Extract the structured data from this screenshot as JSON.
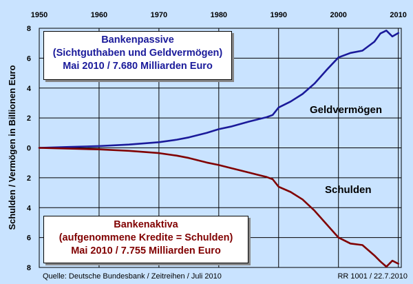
{
  "chart_data": {
    "type": "line",
    "ylabel": "Schulden / Vermögen in Billionen Euro",
    "x_ticks": [
      "1950",
      "1960",
      "1970",
      "1980",
      "1990",
      "2000",
      "2010"
    ],
    "y_ticks_upper": [
      "8",
      "6",
      "4",
      "2",
      "0"
    ],
    "y_ticks_lower": [
      "2",
      "4",
      "6",
      "8"
    ],
    "xlim": [
      1950,
      2010.5
    ],
    "ylim": [
      -8,
      8
    ],
    "grid": true,
    "series": [
      {
        "name": "Geldvermögen",
        "color": "#1a1a9a",
        "x": [
          1950,
          1955,
          1960,
          1965,
          1970,
          1973,
          1975,
          1978,
          1980,
          1982,
          1985,
          1988,
          1989,
          1990,
          1992,
          1994,
          1996,
          1998,
          2000,
          2002,
          2004,
          2006,
          2007,
          2008,
          2009,
          2010
        ],
        "values": [
          0.0,
          0.06,
          0.12,
          0.22,
          0.38,
          0.55,
          0.7,
          1.0,
          1.25,
          1.42,
          1.75,
          2.05,
          2.2,
          2.7,
          3.1,
          3.6,
          4.3,
          5.2,
          6.05,
          6.35,
          6.5,
          7.1,
          7.65,
          7.85,
          7.45,
          7.68
        ]
      },
      {
        "name": "Schulden",
        "color": "#800000",
        "x": [
          1950,
          1955,
          1960,
          1965,
          1970,
          1973,
          1975,
          1978,
          1980,
          1982,
          1985,
          1988,
          1989,
          1990,
          1992,
          1994,
          1996,
          1998,
          2000,
          2002,
          2004,
          2006,
          2007,
          2008,
          2009,
          2010
        ],
        "values": [
          0.0,
          -0.05,
          -0.1,
          -0.2,
          -0.35,
          -0.52,
          -0.68,
          -0.98,
          -1.15,
          -1.35,
          -1.65,
          -1.95,
          -2.1,
          -2.6,
          -2.95,
          -3.45,
          -4.2,
          -5.1,
          -6.0,
          -6.4,
          -6.5,
          -7.2,
          -7.6,
          -7.95,
          -7.55,
          -7.75
        ]
      }
    ],
    "annotations": {
      "upper_box": [
        "Bankenpassive",
        "(Sichtguthaben und Geldvermögen)",
        "Mai 2010 / 7.680 Milliarden Euro"
      ],
      "lower_box": [
        "Bankenaktiva",
        "(aufgenommene Kredite = Schulden)",
        "Mai 2010 / 7.755 Milliarden Euro"
      ]
    },
    "source": "Quelle: Deutsche Bundesbank / Zeitreihen / Juli 2010",
    "reference": "RR 1001 / 22.7.2010"
  }
}
